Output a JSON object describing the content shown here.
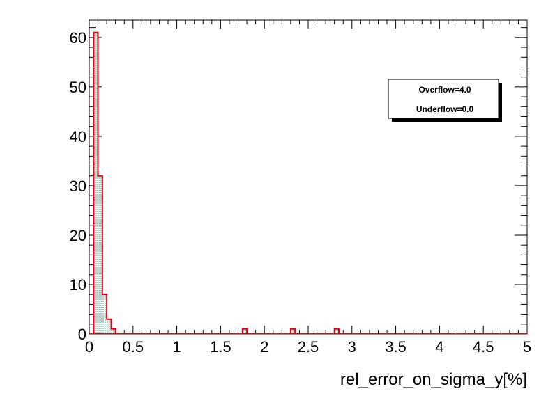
{
  "chart_data": {
    "type": "histogram",
    "xlabel": "rel_error_on_sigma_y[%]",
    "ylabel": "",
    "xlim": [
      0,
      5
    ],
    "ylim": [
      0,
      63.5
    ],
    "bin_width": 0.05,
    "bins": [
      {
        "x": 0.05,
        "value": 61
      },
      {
        "x": 0.1,
        "value": 32
      },
      {
        "x": 0.15,
        "value": 8
      },
      {
        "x": 0.2,
        "value": 3
      },
      {
        "x": 0.25,
        "value": 1
      },
      {
        "x": 1.75,
        "value": 1
      },
      {
        "x": 2.3,
        "value": 1
      },
      {
        "x": 2.8,
        "value": 1
      }
    ],
    "x_ticks": [
      "0",
      "0.5",
      "1",
      "1.5",
      "2",
      "2.5",
      "3",
      "3.5",
      "4",
      "4.5",
      "5"
    ],
    "y_ticks": [
      "0",
      "10",
      "20",
      "30",
      "40",
      "50",
      "60"
    ],
    "stats": {
      "overflow": "Overflow=4.0",
      "underflow": "Underflow=0.0"
    },
    "colors": {
      "line": "#e8000b",
      "fill_hatch": "#2e8b74",
      "axis": "#000000"
    }
  }
}
